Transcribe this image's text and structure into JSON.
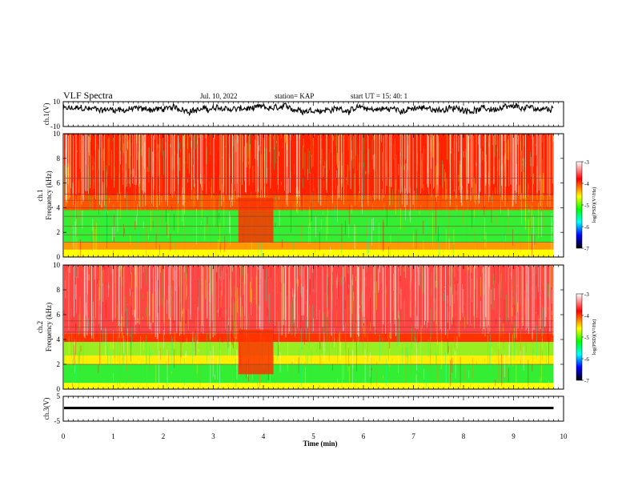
{
  "header": {
    "title": "VLF Spectra",
    "date": "Jul. 10, 2022",
    "station": "station= KAP",
    "start": "start UT = 15: 40: 1"
  },
  "colorbar": {
    "label": "log(PSD)(V²/Hz)",
    "ticks": [
      "-3",
      "-4",
      "-5",
      "-6",
      "-7"
    ],
    "colors": [
      "#ffffff",
      "#ff0000",
      "#ffff00",
      "#00ff00",
      "#00ffff",
      "#0000ff",
      "#000000"
    ]
  },
  "chart_data": [
    {
      "type": "line",
      "panel": "ch1-waveform",
      "ylabel": "ch.1(V)",
      "ylim": [
        -10,
        10
      ],
      "ytick_labels": [
        "10",
        "-10"
      ],
      "xlim": [
        0,
        10
      ],
      "x_end": 9.8,
      "mean": 4,
      "amplitude": 4.5
    },
    {
      "type": "heatmap",
      "panel": "ch1-spectrogram",
      "ylabel": "ch.1\nFrequency (kHz)",
      "ylim": [
        0,
        10
      ],
      "ytick_labels": [
        "0",
        "2",
        "4",
        "6",
        "8",
        "10"
      ],
      "xlim": [
        0,
        10
      ],
      "x_end": 9.8,
      "levels": [
        {
          "f_from": 0,
          "f_to": 0.6,
          "level": "#ffff00"
        },
        {
          "f_from": 0.6,
          "f_to": 1.2,
          "level": "#ff9900"
        },
        {
          "f_from": 1.2,
          "f_to": 3.8,
          "level": "#33ee33"
        },
        {
          "f_from": 3.8,
          "f_to": 5.0,
          "level": "#ff5500"
        },
        {
          "f_from": 5.0,
          "f_to": 10,
          "level": "#ff2200"
        }
      ],
      "burst": {
        "t_from": 3.5,
        "t_to": 4.2,
        "level": "#ff3300"
      },
      "lines_khz": [
        1.2,
        1.8,
        2.5,
        3.3,
        4.0,
        4.6,
        5.1,
        6.4
      ]
    },
    {
      "type": "heatmap",
      "panel": "ch2-spectrogram",
      "ylabel": "ch.2\nFrequency (kHz)",
      "ylim": [
        0,
        10
      ],
      "ytick_labels": [
        "0",
        "2",
        "4",
        "6",
        "8",
        "10"
      ],
      "xlim": [
        0,
        10
      ],
      "x_end": 9.8,
      "levels": [
        {
          "f_from": 0,
          "f_to": 0.5,
          "level": "#ffff00"
        },
        {
          "f_from": 0.5,
          "f_to": 2.0,
          "level": "#33ee33"
        },
        {
          "f_from": 2.0,
          "f_to": 2.7,
          "level": "#ffee00"
        },
        {
          "f_from": 2.7,
          "f_to": 3.8,
          "level": "#99ee22"
        },
        {
          "f_from": 3.8,
          "f_to": 4.5,
          "level": "#ff3300"
        },
        {
          "f_from": 4.5,
          "f_to": 10,
          "level": "#ff4444"
        }
      ],
      "burst": {
        "t_from": 3.5,
        "t_to": 4.2,
        "level": "#ff3300"
      },
      "lines_khz": [
        2.0,
        4.6,
        5.0,
        5.5
      ]
    },
    {
      "type": "line",
      "panel": "ch3-waveform",
      "ylabel": "ch.3(V)",
      "ylim": [
        -5,
        5
      ],
      "ytick_labels": [
        "5",
        "-5"
      ],
      "xlim": [
        0,
        10
      ],
      "x_end": 9.8,
      "mean": 0.3,
      "amplitude": 0.5,
      "xlabel": "Time (min)",
      "xtick_labels": [
        "0",
        "1",
        "2",
        "3",
        "4",
        "5",
        "6",
        "7",
        "8",
        "9",
        "10"
      ]
    }
  ]
}
